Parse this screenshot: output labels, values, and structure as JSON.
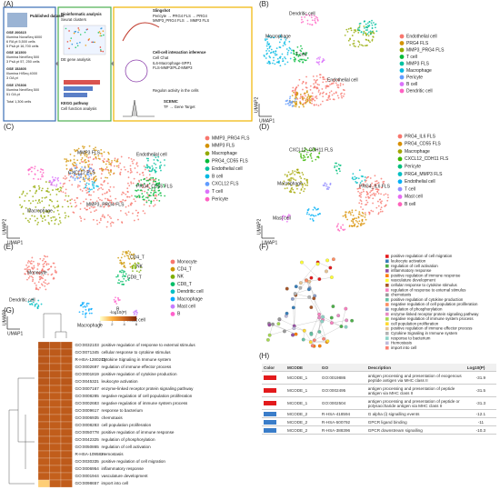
{
  "A": {
    "label": "(A)",
    "box1": [
      "Published dataset",
      "GSE 200815",
      "Illumina NovaSeq 6000",
      "6 RA pt        5,500 cells",
      "5 PsA pt  16,700 cells",
      "GSE 161500",
      "Illumina NextSeq 500",
      "3 PsA pt  57, 250 cells",
      "GSE 152805",
      "Illumina HiSeq 4000",
      "3 OA pt",
      "GSE 176308",
      "Illumina NextSeq 500",
      "51 OA pt",
      "Total 1,306 cells"
    ],
    "box2": [
      "Bioinformatic analysis",
      "Seurat clusters",
      "DE gene analysis",
      "KEGG pathway",
      "Cell function analysis"
    ],
    "box3": [
      "Slingshot",
      "Pericyte → PRG4 FLS → PRG4",
      "MMP3_PRG4 FLS → MMP3 FLS",
      "Cell-cell interaction inference",
      "Cell Chat",
      "IL6-Macrophage-SPP1",
      "FLS-MMP3/PLZ-MMP3",
      "Regulon activity in the cells",
      "SCENIC",
      "TF → Gene Target"
    ]
  },
  "B": {
    "label": "(B)",
    "xlabel": "UMAP1",
    "ylabel": "UMAP2",
    "plot_labels": [
      "Dendritic cell",
      "Macrophage",
      "T cell",
      "Endothelial cell"
    ],
    "legend": [
      {
        "name": "Endothelial cell",
        "color": "#f8766d"
      },
      {
        "name": "PRG4 FLS",
        "color": "#d39200"
      },
      {
        "name": "MMP3_PRG4 FLS",
        "color": "#93aa00"
      },
      {
        "name": "T cell",
        "color": "#00ba38"
      },
      {
        "name": "MMP3 FLS",
        "color": "#00c19f"
      },
      {
        "name": "Macrophage",
        "color": "#00b9e3"
      },
      {
        "name": "Pericyte",
        "color": "#619cff"
      },
      {
        "name": "B cell",
        "color": "#db72fb"
      },
      {
        "name": "Dendritic cell",
        "color": "#ff61c3"
      }
    ]
  },
  "C": {
    "label": "(C)",
    "xlabel": "UMAP1",
    "ylabel": "UMAP2",
    "plot_labels": [
      "MMP3_PRG4 FLS",
      "Macrophage",
      "PRG4_CD55 FLS",
      "Endothelial cell",
      "CXCL12 FLS",
      "MMP3 FLS"
    ],
    "legend": [
      {
        "name": "MMP3_PRG4 FLS",
        "color": "#f8766d"
      },
      {
        "name": "MMP3 FLS",
        "color": "#d39200"
      },
      {
        "name": "Macrophage",
        "color": "#93aa00"
      },
      {
        "name": "PRG4_CD55 FLS",
        "color": "#00ba38"
      },
      {
        "name": "Endothelial cell",
        "color": "#00c19f"
      },
      {
        "name": "B cell",
        "color": "#00b9e3"
      },
      {
        "name": "CXCL12 FLS",
        "color": "#619cff"
      },
      {
        "name": "T cell",
        "color": "#db72fb"
      },
      {
        "name": "Pericyte",
        "color": "#ff61c3"
      }
    ]
  },
  "D": {
    "label": "(D)",
    "xlabel": "UMAP1",
    "ylabel": "UMAP2",
    "plot_labels": [
      "CXCL12_CDH11 FLS",
      "Macrophage",
      "Mast cell",
      "PRG4_IL6 FLS"
    ],
    "legend": [
      {
        "name": "PRG4_IL6 FLS",
        "color": "#f8766d"
      },
      {
        "name": "PRG4_CD55 FLS",
        "color": "#d89000"
      },
      {
        "name": "Macrophage",
        "color": "#a3a500"
      },
      {
        "name": "CXCL12_CDH11 FLS",
        "color": "#39b600"
      },
      {
        "name": "Pericyte",
        "color": "#00bf7d"
      },
      {
        "name": "PRG4_MMP3 FLS",
        "color": "#00bfc4"
      },
      {
        "name": "Endothelial cell",
        "color": "#00b0f6"
      },
      {
        "name": "T cell",
        "color": "#9590ff"
      },
      {
        "name": "Mast cell",
        "color": "#e76bf3"
      },
      {
        "name": "B cell",
        "color": "#ff62bc"
      }
    ]
  },
  "E": {
    "label": "(E)",
    "xlabel": "UMAP1",
    "ylabel": "UMAP2",
    "plot_labels": [
      "Monocyte",
      "CD4_T",
      "CD8_T",
      "NK",
      "Dendritic cell",
      "Mast cell",
      "Macrophage",
      "B"
    ],
    "legend": [
      {
        "name": "Monocyte",
        "color": "#f8766d"
      },
      {
        "name": "CD4_T",
        "color": "#cd9600"
      },
      {
        "name": "NK",
        "color": "#7cae00"
      },
      {
        "name": "CD8_T",
        "color": "#00be67"
      },
      {
        "name": "Dendritic cell",
        "color": "#00bfc4"
      },
      {
        "name": "Macrophage",
        "color": "#00a9ff"
      },
      {
        "name": "Mast cell",
        "color": "#c77cff"
      },
      {
        "name": "B",
        "color": "#ff61cc"
      }
    ]
  },
  "F": {
    "label": "(F)",
    "legend": [
      {
        "name": "positive regulation of cell migration",
        "color": "#e41a1c"
      },
      {
        "name": "leukocyte activation",
        "color": "#377eb8"
      },
      {
        "name": "regulation of cell activation",
        "color": "#4daf4a"
      },
      {
        "name": "inflammatory response",
        "color": "#984ea3"
      },
      {
        "name": "positive regulation of immune response",
        "color": "#ff7f00"
      },
      {
        "name": "vasculature development",
        "color": "#ffff33"
      },
      {
        "name": "cellular response to cytokine stimulus",
        "color": "#a65628"
      },
      {
        "name": "regulation of response to external stimulus",
        "color": "#f781bf"
      },
      {
        "name": "chemotaxis",
        "color": "#999999"
      },
      {
        "name": "positive regulation of cytokine production",
        "color": "#66c2a5"
      },
      {
        "name": "negative regulation of cell population proliferation",
        "color": "#fc8d62"
      },
      {
        "name": "regulation of phosphorylation",
        "color": "#8da0cb"
      },
      {
        "name": "enzyme-linked receptor protein signaling pathway",
        "color": "#e78ac3"
      },
      {
        "name": "negative regulation of immune system process",
        "color": "#a6d854"
      },
      {
        "name": "cell population proliferation",
        "color": "#ffd92f"
      },
      {
        "name": "positive regulation of immune effector process",
        "color": "#e5c494"
      },
      {
        "name": "Cytokine Signaling in Immune system",
        "color": "#b3b3b3"
      },
      {
        "name": "response to bacterium",
        "color": "#8dd3c7"
      },
      {
        "name": "Hemostasis",
        "color": "#bebada"
      },
      {
        "name": "import into cell",
        "color": "#fb8072"
      }
    ]
  },
  "G": {
    "label": "(G)",
    "colorbar_title": "-log10(P)",
    "clim": [
      0,
      6
    ],
    "cticks": [
      0,
      2,
      4,
      6
    ],
    "terms": [
      {
        "id": "GO:0032103",
        "name": "positive regulation of response to external stimulus",
        "values": [
          4.6,
          4.4,
          4.5
        ]
      },
      {
        "id": "GO:0071345",
        "name": "cellular response to cytokine stimulus",
        "values": [
          4.5,
          4.4,
          4.5
        ]
      },
      {
        "id": "R-HSA-1280215",
        "name": "Cytokine Signaling in Immune system",
        "values": [
          4.5,
          4.3,
          4.4
        ]
      },
      {
        "id": "GO:0002697",
        "name": "regulation of immune effector process",
        "values": [
          4.5,
          4.4,
          4.4
        ]
      },
      {
        "id": "GO:0001819",
        "name": "positive regulation of cytokine production",
        "values": [
          4.5,
          4.4,
          4.4
        ]
      },
      {
        "id": "GO:0045321",
        "name": "leukocyte activation",
        "values": [
          4.5,
          4.4,
          4.5
        ]
      },
      {
        "id": "GO:0007167",
        "name": "enzyme-linked receptor protein signaling pathway",
        "values": [
          4.4,
          4.3,
          4.4
        ]
      },
      {
        "id": "GO:0008285",
        "name": "negative regulation of cell population proliferation",
        "values": [
          4.4,
          4.3,
          4.4
        ]
      },
      {
        "id": "GO:0002683",
        "name": "negative regulation of immune system process",
        "values": [
          4.4,
          4.3,
          4.4
        ]
      },
      {
        "id": "GO:0009617",
        "name": "response to bacterium",
        "values": [
          4.4,
          4.3,
          4.4
        ]
      },
      {
        "id": "GO:0006935",
        "name": "chemotaxis",
        "values": [
          4.4,
          4.3,
          4.4
        ]
      },
      {
        "id": "GO:0008283",
        "name": "cell population proliferation",
        "values": [
          4.4,
          4.3,
          4.4
        ]
      },
      {
        "id": "GO:0050778",
        "name": "positive regulation of immune response",
        "values": [
          4.4,
          4.3,
          4.4
        ]
      },
      {
        "id": "GO:0042325",
        "name": "regulation of phosphorylation",
        "values": [
          4.4,
          4.3,
          4.4
        ]
      },
      {
        "id": "GO:0050865",
        "name": "regulation of cell activation",
        "values": [
          4.4,
          4.3,
          4.4
        ]
      },
      {
        "id": "R-HSA-109582",
        "name": "Hemostasis",
        "values": [
          4.3,
          4.3,
          4.4
        ]
      },
      {
        "id": "GO:0030335",
        "name": "positive regulation of cell migration",
        "values": [
          4.3,
          4.3,
          4.4
        ]
      },
      {
        "id": "GO:0006954",
        "name": "inflammatory response",
        "values": [
          4.3,
          4.3,
          4.4
        ]
      },
      {
        "id": "GO:0001944",
        "name": "vasculature development",
        "values": [
          4.3,
          4.2,
          4.3
        ]
      },
      {
        "id": "GO:0098657",
        "name": "import into cell",
        "values": [
          1.2,
          4.2,
          4.3
        ]
      }
    ]
  },
  "H": {
    "label": "(H)",
    "header": [
      "Color",
      "MCODE",
      "GO",
      "Description",
      "Log10(P)"
    ],
    "rows": [
      {
        "color": "#e31a1c",
        "mcode": "MCODE_1",
        "go": "GO:0019886",
        "description": "antigen processing and presentation of exogenous peptide antigen via MHC class II",
        "logp": -31.9
      },
      {
        "color": "#e31a1c",
        "mcode": "MCODE_1",
        "go": "GO:0002495",
        "description": "antigen processing and presentation of peptide antigen via MHC class II",
        "logp": -31.5
      },
      {
        "color": "#e31a1c",
        "mcode": "MCODE_1",
        "go": "GO:0002504",
        "description": "antigen processing and presentation of peptide or polysaccharide antigen via MHC class II",
        "logp": -31.3
      },
      {
        "color": "#3a7dc9",
        "mcode": "MCODE_2",
        "go": "R-HSA-418594",
        "description": "G alpha (i) signalling events",
        "logp": -12.1
      },
      {
        "color": "#3a7dc9",
        "mcode": "MCODE_2",
        "go": "R-HSA-500792",
        "description": "GPCR ligand binding",
        "logp": -11.0
      },
      {
        "color": "#3a7dc9",
        "mcode": "MCODE_2",
        "go": "R-HSA-388396",
        "description": "GPCR downstream signalling",
        "logp": -10.3
      }
    ]
  }
}
